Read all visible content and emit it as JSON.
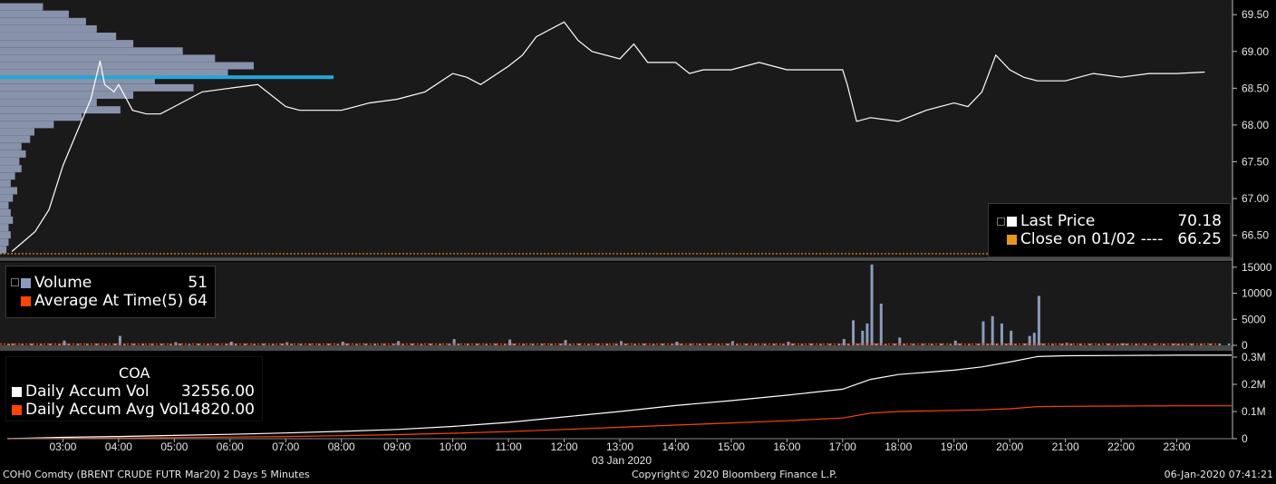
{
  "footer": {
    "security": "COH0 Comdty (BRENT CRUDE FUTR  Mar20) 2 Days 5 Minutes",
    "copyright": "Copyright© 2020 Bloomberg Finance L.P.",
    "timestamp": "06-Jan-2020 07:41:21"
  },
  "date_label": "03 Jan 2020",
  "legend_price": {
    "last_label": "Last Price",
    "last_value": "70.18",
    "close_label": "Close on 01/02 ----",
    "close_value": "66.25"
  },
  "legend_volume": {
    "vol_label": "Volume",
    "vol_value": "51",
    "avg_label": "Average At Time(5)",
    "avg_value": "64"
  },
  "legend_accum": {
    "title": "COA",
    "accum_label": "Daily Accum Vol",
    "accum_value": "32556.00",
    "avg_label": "Daily Accum Avg Vol",
    "avg_value": "14820.00"
  },
  "colors": {
    "price": "#ffffff",
    "close": "#e8961e",
    "volume": "#8a9bbd",
    "avg": "#ff4500",
    "profile": "#9ca9c6",
    "poc": "#22a7d8"
  },
  "chart_data": [
    {
      "type": "line",
      "series": [
        {
          "name": "Last Price",
          "x": [
            "02:05",
            "02:30",
            "02:45",
            "03:00",
            "03:15",
            "03:30",
            "03:40",
            "03:45",
            "03:55",
            "04:00",
            "04:15",
            "04:30",
            "04:45",
            "05:00",
            "05:30",
            "06:00",
            "06:30",
            "07:00",
            "07:15",
            "07:30",
            "08:00",
            "08:30",
            "09:00",
            "09:30",
            "10:00",
            "10:15",
            "10:30",
            "11:00",
            "11:15",
            "11:30",
            "11:45",
            "12:00",
            "12:15",
            "12:30",
            "13:00",
            "13:15",
            "13:30",
            "14:00",
            "14:15",
            "14:30",
            "15:00",
            "15:30",
            "16:00",
            "16:30",
            "17:00",
            "17:05",
            "17:15",
            "17:30",
            "18:00",
            "18:30",
            "19:00",
            "19:15",
            "19:30",
            "19:45",
            "20:00",
            "20:15",
            "20:30",
            "21:00",
            "21:30",
            "22:00",
            "22:30",
            "23:00",
            "23:30"
          ],
          "values": [
            66.28,
            66.55,
            66.85,
            67.45,
            67.9,
            68.35,
            68.87,
            68.55,
            68.45,
            68.55,
            68.2,
            68.15,
            68.15,
            68.25,
            68.45,
            68.5,
            68.55,
            68.25,
            68.2,
            68.2,
            68.2,
            68.3,
            68.35,
            68.45,
            68.7,
            68.65,
            68.55,
            68.8,
            68.95,
            69.2,
            69.3,
            69.4,
            69.15,
            69.0,
            68.9,
            69.1,
            68.85,
            68.85,
            68.7,
            68.75,
            68.75,
            68.85,
            68.75,
            68.75,
            68.75,
            68.55,
            68.05,
            68.1,
            68.05,
            68.2,
            68.3,
            68.25,
            68.45,
            68.95,
            68.75,
            68.65,
            68.6,
            68.6,
            68.7,
            68.65,
            68.7,
            68.7,
            68.72
          ]
        },
        {
          "name": "Close on 01/02",
          "values": [
            66.25
          ]
        }
      ],
      "xlabel": "",
      "ylabel": "",
      "y_ticks": [
        "66.50",
        "67.00",
        "67.50",
        "68.00",
        "68.50",
        "69.00",
        "69.50"
      ],
      "ylim": [
        66.2,
        69.65
      ],
      "volume_profile": {
        "prices": [
          66.3,
          66.4,
          66.5,
          66.6,
          66.7,
          66.8,
          66.9,
          67.0,
          67.1,
          67.2,
          67.3,
          67.4,
          67.5,
          67.6,
          67.7,
          67.8,
          67.9,
          68.0,
          68.1,
          68.2,
          68.3,
          68.4,
          68.5,
          68.6,
          68.7,
          68.8,
          68.9,
          69.0,
          69.1,
          69.2,
          69.3,
          69.4,
          69.5,
          69.6
        ],
        "volume": [
          3,
          4,
          5,
          4,
          6,
          5,
          4,
          6,
          8,
          5,
          7,
          10,
          9,
          12,
          10,
          14,
          16,
          25,
          38,
          56,
          45,
          62,
          90,
          72,
          106,
          118,
          100,
          85,
          62,
          54,
          45,
          40,
          32,
          20
        ],
        "poc_price": 68.65
      }
    },
    {
      "type": "bar",
      "series": [
        {
          "name": "Volume",
          "x": [
            "02:00",
            "03:00",
            "04:00",
            "05:00",
            "06:00",
            "07:00",
            "08:00",
            "09:00",
            "10:00",
            "11:00",
            "12:00",
            "13:00",
            "14:00",
            "15:00",
            "16:00",
            "17:00",
            "17:10",
            "17:20",
            "17:25",
            "17:30",
            "17:40",
            "18:00",
            "19:00",
            "19:30",
            "19:40",
            "19:50",
            "20:00",
            "20:20",
            "20:25",
            "20:30",
            "21:00",
            "22:00",
            "23:00"
          ],
          "values": [
            300,
            900,
            1800,
            600,
            700,
            600,
            700,
            800,
            1200,
            1100,
            1000,
            800,
            700,
            800,
            700,
            1200,
            4800,
            2800,
            4200,
            15500,
            8000,
            1500,
            900,
            4600,
            5600,
            4200,
            2800,
            1800,
            2400,
            9500,
            500,
            400,
            300
          ]
        },
        {
          "name": "Average At Time(5)",
          "values": [
            64
          ]
        }
      ],
      "y_ticks": [
        "0",
        "5000",
        "10000",
        "15000"
      ],
      "ylim": [
        0,
        16000
      ]
    },
    {
      "type": "line",
      "series": [
        {
          "name": "Daily Accum Vol",
          "x": [
            "02:00",
            "03:00",
            "04:00",
            "05:00",
            "06:00",
            "07:00",
            "08:00",
            "09:00",
            "10:00",
            "11:00",
            "12:00",
            "13:00",
            "14:00",
            "15:00",
            "16:00",
            "17:00",
            "17:30",
            "18:00",
            "19:00",
            "19:30",
            "20:00",
            "20:30",
            "21:00",
            "22:00",
            "23:00",
            "23:59"
          ],
          "values": [
            0,
            5000,
            8000,
            12000,
            16000,
            21000,
            27000,
            34000,
            45000,
            60000,
            80000,
            100000,
            122000,
            140000,
            160000,
            182000,
            218000,
            236000,
            252000,
            264000,
            282000,
            302000,
            305000,
            306000,
            307000,
            307000
          ]
        },
        {
          "name": "Daily Accum Avg Vol",
          "x": [
            "02:00",
            "03:00",
            "04:00",
            "05:00",
            "06:00",
            "07:00",
            "08:00",
            "09:00",
            "10:00",
            "11:00",
            "12:00",
            "13:00",
            "14:00",
            "15:00",
            "16:00",
            "17:00",
            "17:30",
            "18:00",
            "19:00",
            "19:30",
            "20:00",
            "20:30",
            "21:00",
            "22:00",
            "23:00",
            "23:59"
          ],
          "values": [
            0,
            1500,
            2500,
            4000,
            6000,
            8000,
            11000,
            15000,
            20000,
            26000,
            34000,
            42000,
            50000,
            58000,
            66000,
            76000,
            94000,
            100000,
            104000,
            106000,
            110000,
            118000,
            119000,
            120000,
            121000,
            121000
          ]
        }
      ],
      "y_ticks": [
        "0",
        "0.1M",
        "0.2M",
        "0.3M"
      ],
      "ylim": [
        0,
        320000
      ],
      "x_ticks": [
        "03:00",
        "04:00",
        "05:00",
        "06:00",
        "07:00",
        "08:00",
        "09:00",
        "10:00",
        "11:00",
        "12:00",
        "13:00",
        "14:00",
        "15:00",
        "16:00",
        "17:00",
        "18:00",
        "19:00",
        "20:00",
        "21:00",
        "22:00",
        "23:00"
      ]
    }
  ]
}
